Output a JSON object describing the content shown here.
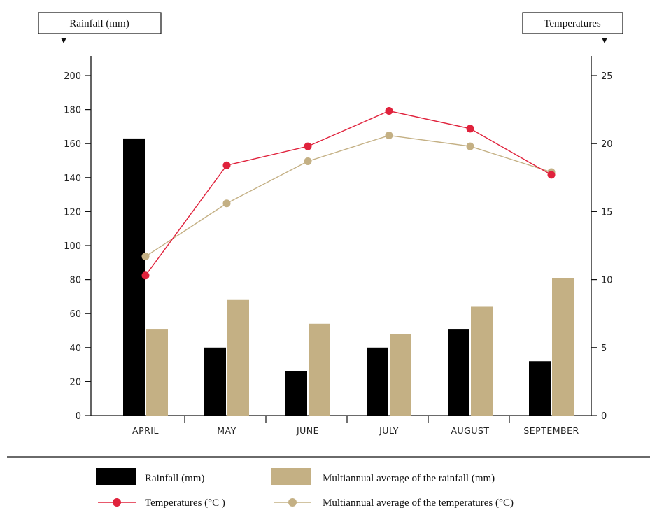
{
  "chart_data": {
    "type": "bar",
    "categories": [
      "APRIL",
      "MAY",
      "JUNE",
      "JULY",
      "AUGUST",
      "SEPTEMBER"
    ],
    "series": [
      {
        "name": "Rainfall (mm)",
        "kind": "bar",
        "axis": "left",
        "color": "#000000",
        "values": [
          163,
          40,
          26,
          40,
          51,
          32
        ]
      },
      {
        "name": "Multiannual average of the rainfall (mm)",
        "kind": "bar",
        "axis": "left",
        "color": "#c4b084",
        "values": [
          51,
          68,
          54,
          48,
          64,
          81
        ]
      },
      {
        "name": "Temperatures (°C )",
        "kind": "line",
        "axis": "right",
        "color": "#e0223c",
        "values": [
          10.3,
          18.4,
          19.8,
          22.4,
          21.1,
          17.7
        ]
      },
      {
        "name": "Multiannual average of the temperatures (°C)",
        "kind": "line",
        "axis": "right",
        "color": "#c4b084",
        "values": [
          11.7,
          15.6,
          18.7,
          20.6,
          19.8,
          17.9
        ]
      }
    ],
    "left_axis": {
      "title": "Rainfall (mm)",
      "range": [
        0,
        200
      ],
      "ticks": [
        "0",
        "20",
        "40",
        "60",
        "80",
        "100",
        "120",
        "140",
        "160",
        "180",
        "200"
      ]
    },
    "right_axis": {
      "title": "Temperatures",
      "range": [
        0,
        25
      ],
      "ticks": [
        "0",
        "5",
        "10",
        "15",
        "20",
        "25"
      ]
    },
    "grid": false,
    "legend_position": "bottom"
  }
}
